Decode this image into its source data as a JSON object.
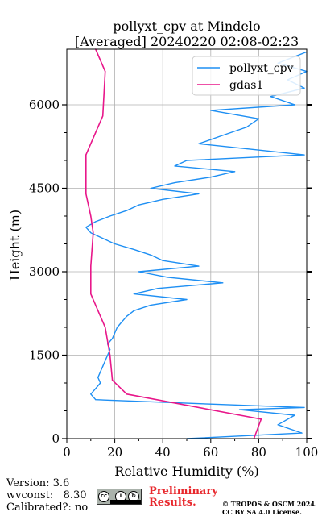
{
  "chart_data": {
    "type": "line",
    "title": "pollyxt_cpv at Mindelo",
    "subtitle": "[Averaged] 20240220 02:08-02:23",
    "xlabel": "Relative Humidity (%)",
    "ylabel": "Height (m)",
    "xlim": [
      0,
      100
    ],
    "ylim": [
      0,
      7000
    ],
    "x_ticks": [
      "0",
      "20",
      "40",
      "60",
      "80",
      "100"
    ],
    "y_ticks": [
      "0",
      "1500",
      "3000",
      "4500",
      "6000"
    ],
    "grid": true,
    "legend_position": "top-right",
    "colors": {
      "pollyxt": "#1e8ff3",
      "gdas1": "#e8178a"
    },
    "series": [
      {
        "name": "pollyxt_cpv",
        "x": [
          50,
          98,
          88,
          95,
          72,
          99,
          60,
          12,
          10,
          12,
          14,
          13,
          14,
          15,
          16,
          17,
          18,
          17,
          19,
          20,
          21,
          23,
          25,
          28,
          35,
          50,
          28,
          38,
          65,
          42,
          30,
          55,
          40,
          35,
          28,
          20,
          15,
          10,
          8,
          12,
          18,
          25,
          30,
          40,
          55,
          35,
          45,
          60,
          70,
          45,
          50,
          99,
          55,
          65,
          75,
          80,
          60,
          95,
          85,
          99,
          92,
          100,
          88,
          100
        ],
        "y": [
          0,
          100,
          250,
          420,
          520,
          560,
          620,
          700,
          800,
          900,
          1000,
          1100,
          1200,
          1300,
          1400,
          1500,
          1600,
          1700,
          1800,
          1900,
          2000,
          2100,
          2200,
          2300,
          2400,
          2500,
          2600,
          2700,
          2800,
          2900,
          3000,
          3100,
          3200,
          3300,
          3400,
          3500,
          3600,
          3700,
          3800,
          3900,
          4000,
          4100,
          4200,
          4300,
          4400,
          4500,
          4600,
          4700,
          4800,
          4900,
          5000,
          5100,
          5300,
          5450,
          5600,
          5750,
          5900,
          6000,
          6150,
          6300,
          6450,
          6600,
          6750,
          6950
        ]
      },
      {
        "name": "gdas1",
        "x": [
          78,
          81,
          25,
          19,
          18,
          16,
          15,
          10,
          10,
          11,
          10,
          8,
          8,
          15,
          16,
          12
        ],
        "y": [
          0,
          350,
          800,
          1050,
          1500,
          2000,
          2100,
          2600,
          3100,
          3700,
          4000,
          4400,
          5100,
          5800,
          6600,
          7000
        ]
      }
    ]
  },
  "footer": {
    "version": "Version: 3.6",
    "wvconst": "wvconst:   8.30",
    "calibrated": "Calibrated?: no",
    "preliminary_1": "Preliminary",
    "preliminary_2": "Results.",
    "copyright_1": "© TROPOS & OSCM 2024.",
    "copyright_2": "CC BY SA 4.0 License."
  }
}
